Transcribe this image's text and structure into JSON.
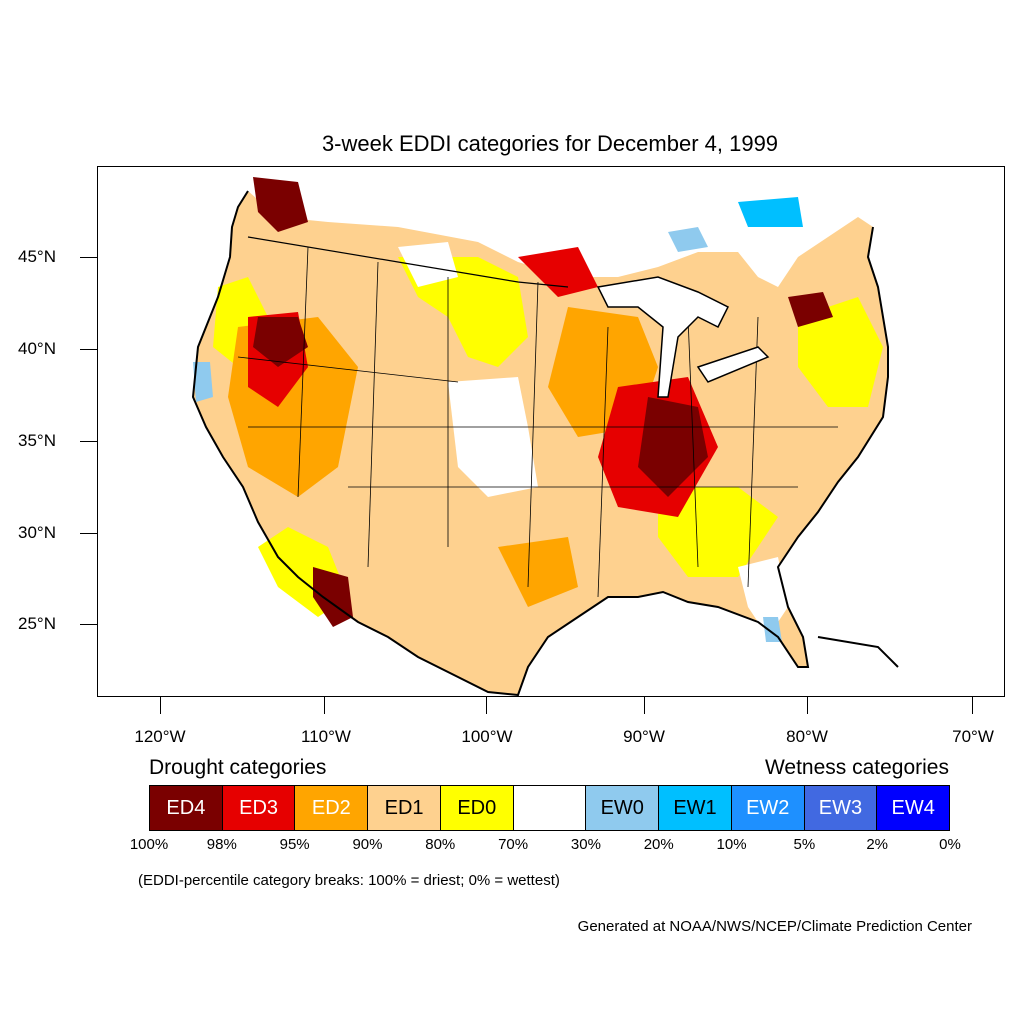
{
  "title": "3-week EDDI categories for December 4, 1999",
  "lat_labels": [
    "45°N",
    "40°N",
    "35°N",
    "30°N",
    "25°N"
  ],
  "lon_labels": [
    "120°W",
    "110°W",
    "100°W",
    "90°W",
    "80°W",
    "70°W"
  ],
  "legend": {
    "drought_title": "Drought categories",
    "wetness_title": "Wetness categories",
    "categories": [
      {
        "label": "ED4",
        "color": "#7a0000",
        "text_color": "#ffffff"
      },
      {
        "label": "ED3",
        "color": "#e60000",
        "text_color": "#ffffff"
      },
      {
        "label": "ED2",
        "color": "#ffa500",
        "text_color": "#ffffff"
      },
      {
        "label": "ED1",
        "color": "#fed18f",
        "text_color": "#000000"
      },
      {
        "label": "ED0",
        "color": "#ffff00",
        "text_color": "#000000"
      },
      {
        "label": "",
        "color": "#ffffff",
        "text_color": "#000000"
      },
      {
        "label": "EW0",
        "color": "#8fcaee",
        "text_color": "#000000"
      },
      {
        "label": "EW1",
        "color": "#00bfff",
        "text_color": "#000000"
      },
      {
        "label": "EW2",
        "color": "#1e90ff",
        "text_color": "#ffffff"
      },
      {
        "label": "EW3",
        "color": "#4169e1",
        "text_color": "#ffffff"
      },
      {
        "label": "EW4",
        "color": "#0000ff",
        "text_color": "#ffffff"
      }
    ],
    "percentiles": [
      "100%",
      "98%",
      "95%",
      "90%",
      "80%",
      "70%",
      "30%",
      "20%",
      "10%",
      "5%",
      "2%",
      "0%"
    ],
    "note": "(EDDI-percentile category breaks: 100% = driest; 0% = wettest)"
  },
  "credit": "Generated at NOAA/NWS/NCEP/Climate Prediction Center"
}
